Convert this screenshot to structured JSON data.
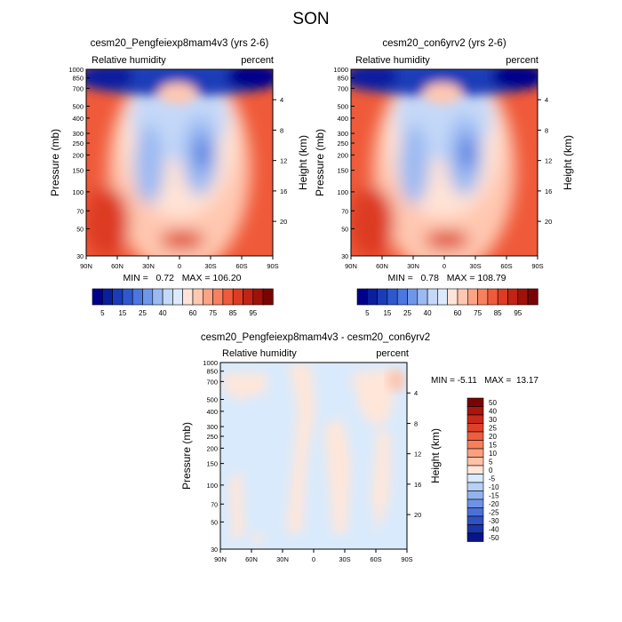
{
  "page_title": "SON",
  "chart_data": [
    {
      "type": "heatmap",
      "title": "cesm20_Pengfeiexp8mam4v3 (yrs 2-6)",
      "variable_label": "Relative humidity",
      "units_label": "percent",
      "ylabel": "Pressure (mb)",
      "y2label": "Height (km)",
      "x_ticks": [
        "90N",
        "60N",
        "30N",
        "0",
        "30S",
        "60S",
        "90S"
      ],
      "p_ticks": [
        "30",
        "50",
        "70",
        "100",
        "150",
        "200",
        "250",
        "300",
        "400",
        "500",
        "700",
        "850",
        "1000"
      ],
      "z_ticks": [
        "20",
        "16",
        "12",
        "8",
        "4"
      ],
      "stats": "MIN =   0.72   MAX = 106.20",
      "colorbar_labels": [
        "5",
        "15",
        "25",
        "40",
        "60",
        "75",
        "85",
        "95"
      ],
      "colors": [
        "#00008b",
        "#0a1f9e",
        "#1a3cb8",
        "#2f58cf",
        "#4a77e0",
        "#6e97ea",
        "#9bbaf2",
        "#c4d8f8",
        "#ddeafb",
        "#ffe3d6",
        "#ffc7b0",
        "#fca386",
        "#f7805e",
        "#ef5a3a",
        "#dd3b22",
        "#c12315",
        "#9e1209",
        "#7a0403"
      ],
      "ylim": [
        1000,
        30
      ],
      "xlim": [
        "90N",
        "90S"
      ]
    },
    {
      "type": "heatmap",
      "title": "cesm20_con6yrv2 (yrs 2-6)",
      "variable_label": "Relative humidity",
      "units_label": "percent",
      "ylabel": "Pressure (mb)",
      "y2label": "Height (km)",
      "x_ticks": [
        "90N",
        "60N",
        "30N",
        "0",
        "30S",
        "60S",
        "90S"
      ],
      "p_ticks": [
        "30",
        "50",
        "70",
        "100",
        "150",
        "200",
        "250",
        "300",
        "400",
        "500",
        "700",
        "850",
        "1000"
      ],
      "z_ticks": [
        "20",
        "16",
        "12",
        "8",
        "4"
      ],
      "stats": "MIN =   0.78   MAX = 108.79",
      "colorbar_labels": [
        "5",
        "15",
        "25",
        "40",
        "60",
        "75",
        "85",
        "95"
      ],
      "ylim": [
        1000,
        30
      ],
      "xlim": [
        "90N",
        "90S"
      ]
    },
    {
      "type": "heatmap",
      "title": "cesm20_Pengfeiexp8mam4v3 - cesm20_con6yrv2",
      "variable_label": "Relative humidity",
      "units_label": "percent",
      "ylabel": "Pressure (mb)",
      "y2label": "Height (km)",
      "x_ticks": [
        "90N",
        "60N",
        "30N",
        "0",
        "30S",
        "60S",
        "90S"
      ],
      "p_ticks": [
        "30",
        "50",
        "70",
        "100",
        "150",
        "200",
        "250",
        "300",
        "400",
        "500",
        "700",
        "850",
        "1000"
      ],
      "z_ticks": [
        "20",
        "16",
        "12",
        "8",
        "4"
      ],
      "stats": "MIN = -5.11   MAX =  13.17",
      "colorbar_labels": [
        "50",
        "40",
        "30",
        "25",
        "20",
        "15",
        "10",
        "5",
        "0",
        "-5",
        "-10",
        "-15",
        "-20",
        "-25",
        "-30",
        "-40",
        "-50"
      ],
      "colors": [
        "#7a0403",
        "#a8160e",
        "#c9291a",
        "#df4128",
        "#ee5e3e",
        "#f77f5c",
        "#fc9f80",
        "#ffc2a8",
        "#ffe6d9",
        "#d9eafc",
        "#b7d0f6",
        "#93b3ee",
        "#6f92e4",
        "#4c70d6",
        "#2f51c2",
        "#1a35a6",
        "#06158a"
      ],
      "ylim": [
        1000,
        30
      ],
      "xlim": [
        "90N",
        "90S"
      ]
    }
  ]
}
